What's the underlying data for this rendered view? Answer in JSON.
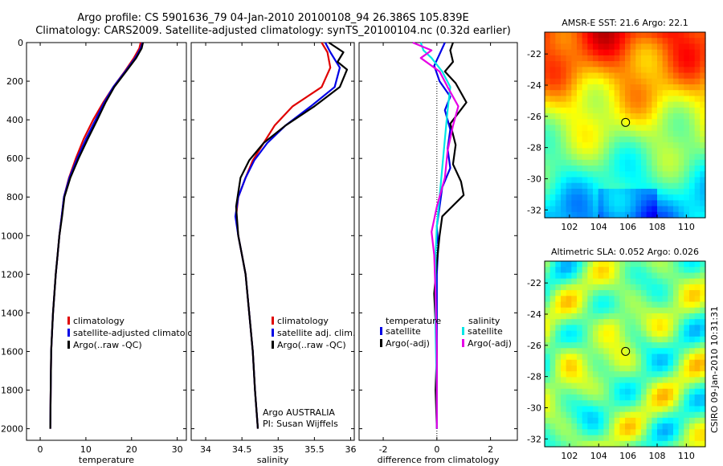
{
  "header": {
    "line1": "Argo profile: CS 5901636_79 04-Jan-2010 20100108_94 26.386S 105.839E",
    "line2": "Climatology: CARS2009. Satellite-adjusted climatology: synTS_20100104.nc (0.32d earlier)"
  },
  "side_label": "CSIRO 09-Jan-2010 10:31:31",
  "colors": {
    "climatology": "#e00000",
    "satellite": "#0000e6",
    "argo": "#000000",
    "sat_sal": "#00e6e6",
    "argo_sal": "#e600e6"
  },
  "chart_data": [
    {
      "id": "temperature",
      "type": "line",
      "xlabel": "temperature",
      "xlim": [
        -3,
        32
      ],
      "ylim": [
        0,
        2060
      ],
      "y_inverted": true,
      "xticks": [
        0,
        10,
        20,
        30
      ],
      "yticks": [
        0,
        200,
        400,
        600,
        800,
        1000,
        1200,
        1400,
        1600,
        1800,
        2000
      ],
      "legend": {
        "placement": "lower-center",
        "entries": [
          "climatology",
          "satellite-adjusted climatolog",
          "Argo(..raw -QC)"
        ]
      },
      "series": [
        {
          "name": "climatology",
          "color_key": "climatology",
          "x": [
            22.0,
            21.7,
            20.5,
            18.5,
            16.0,
            13.8,
            11.6,
            9.5,
            7.8,
            6.3,
            5.2,
            4.7,
            4.2,
            3.8,
            3.4,
            3.1,
            2.8,
            2.6,
            2.4,
            2.3,
            2.2
          ],
          "y": [
            0,
            30,
            80,
            150,
            230,
            310,
            400,
            500,
            600,
            700,
            800,
            900,
            1000,
            1100,
            1200,
            1300,
            1400,
            1500,
            1600,
            1800,
            2000
          ]
        },
        {
          "name": "satellite-adjusted climatolog",
          "color_key": "satellite",
          "x": [
            22.4,
            22.0,
            20.8,
            18.6,
            16.0,
            14.0,
            12.1,
            10.0,
            8.1,
            6.4,
            5.2,
            4.7,
            4.2,
            3.8,
            3.4,
            3.1,
            2.8,
            2.6,
            2.4,
            2.3,
            2.2
          ],
          "y": [
            0,
            30,
            80,
            150,
            230,
            310,
            400,
            500,
            600,
            700,
            800,
            900,
            1000,
            1100,
            1200,
            1300,
            1400,
            1500,
            1600,
            1800,
            2000
          ]
        },
        {
          "name": "Argo(..raw -QC)",
          "color_key": "argo",
          "x": [
            22.5,
            22.2,
            21.0,
            18.8,
            16.2,
            14.3,
            12.5,
            10.4,
            8.4,
            6.6,
            5.3,
            4.8,
            4.2,
            3.8,
            3.4,
            3.1,
            2.8,
            2.6,
            2.4,
            2.3,
            2.2
          ],
          "y": [
            0,
            30,
            80,
            150,
            230,
            310,
            400,
            500,
            600,
            700,
            800,
            900,
            1000,
            1100,
            1200,
            1300,
            1400,
            1500,
            1600,
            1800,
            2000
          ]
        }
      ]
    },
    {
      "id": "salinity",
      "type": "line",
      "xlabel": "salinity",
      "xlim": [
        33.8,
        36.05
      ],
      "ylim": [
        0,
        2060
      ],
      "y_inverted": true,
      "xticks": [
        34,
        34.5,
        35,
        35.5,
        36
      ],
      "legend": {
        "placement": "lower-right",
        "entries": [
          "climatology",
          "satellite adj. clim.",
          "Argo(..raw -QC)"
        ]
      },
      "annotation": [
        "Argo AUSTRALIA",
        "PI: Susan Wijffels"
      ],
      "series": [
        {
          "name": "climatology",
          "color_key": "climatology",
          "x": [
            35.6,
            35.68,
            35.72,
            35.6,
            35.2,
            34.95,
            34.8,
            34.65,
            34.55,
            34.45,
            34.42,
            34.45,
            34.5,
            34.55,
            34.6,
            34.65,
            34.68,
            34.72
          ],
          "y": [
            0,
            50,
            130,
            230,
            330,
            430,
            520,
            610,
            700,
            800,
            900,
            1000,
            1100,
            1200,
            1400,
            1600,
            1800,
            2000
          ]
        },
        {
          "name": "satellite adj. clim.",
          "color_key": "satellite",
          "x": [
            35.65,
            35.72,
            35.85,
            35.78,
            35.45,
            35.1,
            34.85,
            34.67,
            34.55,
            34.45,
            34.41,
            34.45,
            34.5,
            34.55,
            34.6,
            34.65,
            34.68,
            34.72
          ],
          "y": [
            0,
            50,
            130,
            230,
            330,
            430,
            520,
            610,
            700,
            800,
            900,
            1000,
            1100,
            1200,
            1400,
            1600,
            1800,
            2000
          ]
        },
        {
          "name": "Argo(..raw -QC)",
          "color_key": "argo",
          "x": [
            35.7,
            35.9,
            35.82,
            35.95,
            35.85,
            35.5,
            35.1,
            34.8,
            34.6,
            34.48,
            34.42,
            34.45,
            34.5,
            34.55,
            34.6,
            34.65,
            34.68,
            34.72
          ],
          "y": [
            0,
            50,
            100,
            140,
            230,
            330,
            430,
            520,
            610,
            700,
            850,
            1000,
            1100,
            1200,
            1400,
            1600,
            1800,
            2000
          ]
        }
      ]
    },
    {
      "id": "difference",
      "type": "line",
      "xlabel": "difference from climatology",
      "xlim": [
        -2.9,
        3.0
      ],
      "ylim": [
        0,
        2060
      ],
      "y_inverted": true,
      "xticks": [
        -2,
        0,
        2
      ],
      "zero_line": true,
      "legend": {
        "placement": "lower-center",
        "temperature_title": "temperature",
        "salinity_title": "salinity",
        "entries_t": [
          "satellite",
          "Argo(-adj)"
        ],
        "entries_s": [
          "satellite",
          "Argo(-adj)"
        ]
      },
      "series": [
        {
          "name": "temperature satellite",
          "color_key": "satellite",
          "x": [
            0.3,
            0.1,
            -0.1,
            0.1,
            0.5,
            0.3,
            0.5,
            0.4,
            0.5,
            0.2,
            0.1,
            0.0,
            0.05,
            0.0,
            0.0,
            0.0,
            0.0
          ],
          "y": [
            0,
            60,
            120,
            200,
            280,
            350,
            450,
            550,
            650,
            750,
            850,
            950,
            1050,
            1200,
            1400,
            1600,
            2000
          ]
        },
        {
          "name": "temperature Argo(-adj)",
          "color_key": "argo",
          "x": [
            0.6,
            0.5,
            0.6,
            0.3,
            0.7,
            1.1,
            0.5,
            0.7,
            0.6,
            0.9,
            1.0,
            0.2,
            0.1,
            0.0,
            -0.1,
            0.0,
            -0.05,
            0.0
          ],
          "y": [
            0,
            40,
            100,
            150,
            210,
            310,
            420,
            530,
            630,
            720,
            790,
            900,
            1000,
            1140,
            1300,
            1600,
            1800,
            2000
          ]
        },
        {
          "name": "salinity satellite",
          "color_key": "sat_sal",
          "x": [
            -0.6,
            -0.5,
            -0.2,
            0.2,
            0.5,
            0.4,
            0.3,
            0.2,
            0.1,
            0.0,
            -0.05,
            -0.05,
            -0.05,
            0.0,
            0.0
          ],
          "y": [
            0,
            40,
            80,
            150,
            230,
            350,
            500,
            650,
            800,
            950,
            1100,
            1300,
            1500,
            1800,
            2000
          ]
        },
        {
          "name": "salinity Argo(-adj)",
          "color_key": "argo_sal",
          "x": [
            -0.9,
            -0.2,
            -0.6,
            0.1,
            0.4,
            0.8,
            0.6,
            0.4,
            0.3,
            0.0,
            -0.2,
            -0.1,
            -0.05,
            0.0,
            0.0
          ],
          "y": [
            0,
            40,
            80,
            150,
            230,
            330,
            430,
            560,
            700,
            850,
            980,
            1100,
            1300,
            1600,
            2000
          ]
        }
      ]
    },
    {
      "id": "sst_map",
      "type": "heatmap",
      "title": "AMSR-E SST: 21.6 Argo: 22.1",
      "xlim": [
        100.3,
        111.3
      ],
      "ylim": [
        -32.5,
        -20.6
      ],
      "xticks": [
        102,
        104,
        106,
        108,
        110
      ],
      "yticks": [
        -22,
        -24,
        -26,
        -28,
        -30,
        -32
      ],
      "marker": {
        "lon": 105.839,
        "lat": -26.386
      },
      "field": "sst"
    },
    {
      "id": "sla_map",
      "type": "heatmap",
      "title": "Altimetric SLA: 0.052 Argo: 0.026",
      "xlim": [
        100.3,
        111.3
      ],
      "ylim": [
        -32.5,
        -20.6
      ],
      "xticks": [
        102,
        104,
        106,
        108,
        110
      ],
      "yticks": [
        -22,
        -24,
        -26,
        -28,
        -30,
        -32
      ],
      "marker": {
        "lon": 105.839,
        "lat": -26.386
      },
      "field": "sla"
    }
  ]
}
